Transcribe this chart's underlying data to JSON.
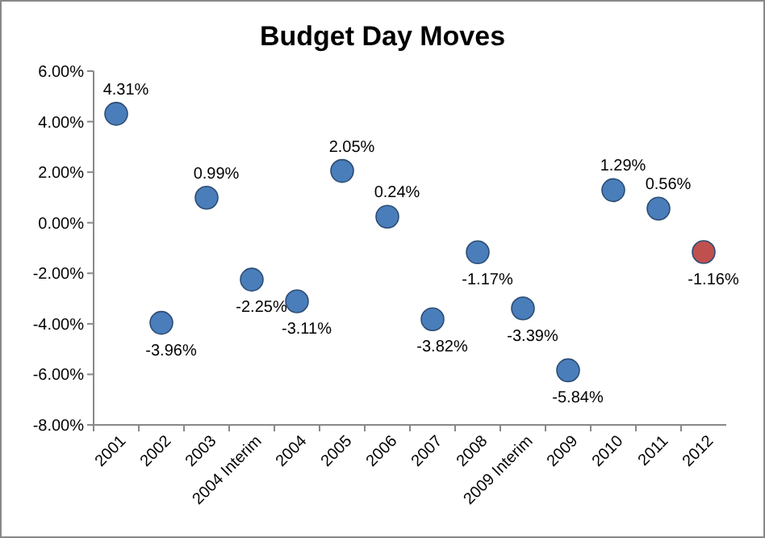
{
  "chart_data": {
    "type": "scatter",
    "title": "Budget Day Moves",
    "categories": [
      "2001",
      "2002",
      "2003",
      "2004 Interim",
      "2004",
      "2005",
      "2006",
      "2007",
      "2008",
      "2009 Interim",
      "2009",
      "2010",
      "2011",
      "2012"
    ],
    "values": [
      4.31,
      -3.96,
      0.99,
      -2.25,
      -3.11,
      2.05,
      0.24,
      -3.82,
      -1.17,
      -3.39,
      -5.84,
      1.29,
      0.56,
      -1.16
    ],
    "value_labels": [
      "4.31%",
      "-3.96%",
      "0.99%",
      "-2.25%",
      "-3.11%",
      "2.05%",
      "0.24%",
      "-3.82%",
      "-1.17%",
      "-3.39%",
      "-5.84%",
      "1.29%",
      "0.56%",
      "-1.16%"
    ],
    "colors": [
      "#4a7ebb",
      "#4a7ebb",
      "#4a7ebb",
      "#4a7ebb",
      "#4a7ebb",
      "#4a7ebb",
      "#4a7ebb",
      "#4a7ebb",
      "#4a7ebb",
      "#4a7ebb",
      "#4a7ebb",
      "#4a7ebb",
      "#4a7ebb",
      "#c0504d"
    ],
    "ylim": [
      -8,
      6
    ],
    "yticks": [
      {
        "value": -8,
        "label": "-8.00%"
      },
      {
        "value": -6,
        "label": "-6.00%"
      },
      {
        "value": -4,
        "label": "-4.00%"
      },
      {
        "value": -2,
        "label": "-2.00%"
      },
      {
        "value": 0,
        "label": "0.00%"
      },
      {
        "value": 2,
        "label": "2.00%"
      },
      {
        "value": 4,
        "label": "4.00%"
      },
      {
        "value": 6,
        "label": "6.00%"
      }
    ],
    "marker": "circle",
    "grid": false
  }
}
